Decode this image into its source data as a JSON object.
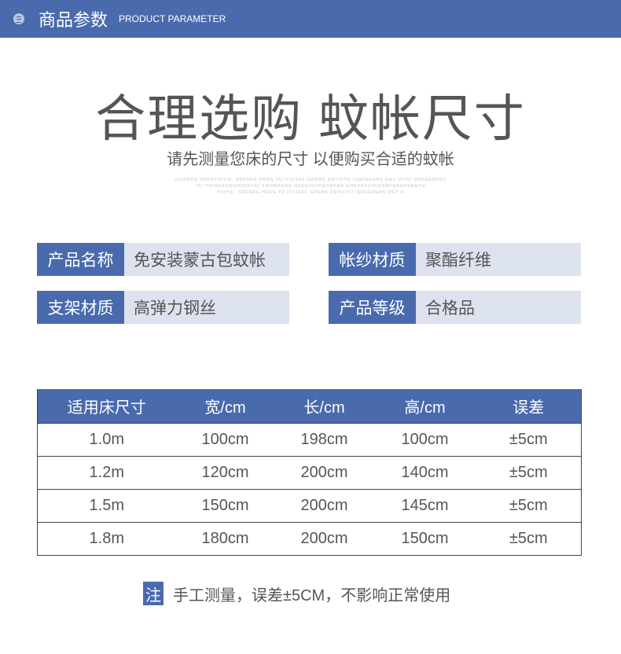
{
  "header": {
    "title": "商品参数",
    "subtitle": "PRODUCT PARAMETER",
    "icon": "list-icon"
  },
  "hero": {
    "title": "合理选购 蚊帐尺寸",
    "subtitle": "请先测量您床的尺寸 以便购买合适的蚊帐",
    "tiny_lines": [
      "UISFGDG HSDGYUIYUI, SDFGDG HSDG YU IYUISDF GDGHS DGYUIYU ISDFGDGHS DGY UIYUI SDFGDGHSD",
      "YU IYUISDFGDGHSDGYUI YUISDFGDG HSDGYUIYUISDFGD GHSDGYUIYUISDFGDGHSDGYU",
      "YUIYUI, SDFGDG HSDG YU IYUISDF GDGHS DGYUIYU ISDFGDGHS DGY U"
    ]
  },
  "specs": [
    {
      "label": "产品名称",
      "value": "免安装蒙古包蚊帐"
    },
    {
      "label": "帐纱材质",
      "value": "聚酯纤维"
    },
    {
      "label": "支架材质",
      "value": "高弹力钢丝"
    },
    {
      "label": "产品等级",
      "value": "合格品"
    }
  ],
  "table": {
    "headers": [
      "适用床尺寸",
      "宽/cm",
      "长/cm",
      "高/cm",
      "误差"
    ],
    "rows": [
      [
        "1.0m",
        "100cm",
        "198cm",
        "100cm",
        "±5cm"
      ],
      [
        "1.2m",
        "120cm",
        "200cm",
        "140cm",
        "±5cm"
      ],
      [
        "1.5m",
        "150cm",
        "200cm",
        "145cm",
        "±5cm"
      ],
      [
        "1.8m",
        "180cm",
        "200cm",
        "150cm",
        "±5cm"
      ]
    ]
  },
  "note": {
    "badge": "注",
    "text": "手工测量，误差±5CM，不影响正常使用"
  },
  "colors": {
    "accent": "#4a6aae",
    "value_bg": "#dde2ef"
  }
}
